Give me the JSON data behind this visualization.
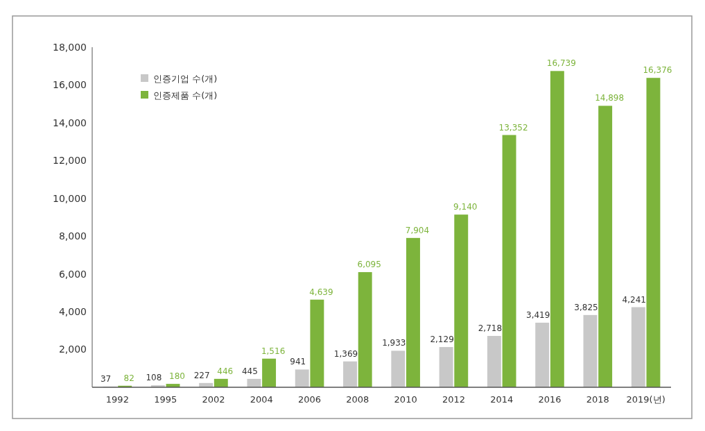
{
  "chart_data": {
    "type": "bar",
    "categories": [
      "1992",
      "1995",
      "2002",
      "2004",
      "2006",
      "2008",
      "2010",
      "2012",
      "2014",
      "2016",
      "2018",
      "2019(년)"
    ],
    "series": [
      {
        "name": "인증기업 수(개)",
        "color": "#c8c8c8",
        "values": [
          37,
          108,
          227,
          445,
          941,
          1369,
          1933,
          2129,
          2718,
          3419,
          3825,
          4241
        ],
        "value_labels": [
          "37",
          "108",
          "227",
          "445",
          "941",
          "1,369",
          "1,933",
          "2,129",
          "2,718",
          "3,419",
          "3,825",
          "4,241"
        ]
      },
      {
        "name": "인증제품 수(개)",
        "color": "#7db43c",
        "values": [
          82,
          180,
          446,
          1516,
          4639,
          6095,
          7904,
          9140,
          13352,
          16739,
          14898,
          16376
        ],
        "value_labels": [
          "82",
          "180",
          "446",
          "1,516",
          "4,639",
          "6,095",
          "7,904",
          "9,140",
          "13,352",
          "16,739",
          "14,898",
          "16,376"
        ]
      }
    ],
    "ylim": [
      0,
      18000
    ],
    "yticks": [
      {
        "value": 2000,
        "label": "2,000"
      },
      {
        "value": 4000,
        "label": "4,000"
      },
      {
        "value": 6000,
        "label": "6,000"
      },
      {
        "value": 8000,
        "label": "8,000"
      },
      {
        "value": 10000,
        "label": "10,000"
      },
      {
        "value": 12000,
        "label": "12,000"
      },
      {
        "value": 14000,
        "label": "14,000"
      },
      {
        "value": 16000,
        "label": "16,000"
      },
      {
        "value": 18000,
        "label": "18,000"
      }
    ],
    "legend": "top left",
    "grid": false
  }
}
